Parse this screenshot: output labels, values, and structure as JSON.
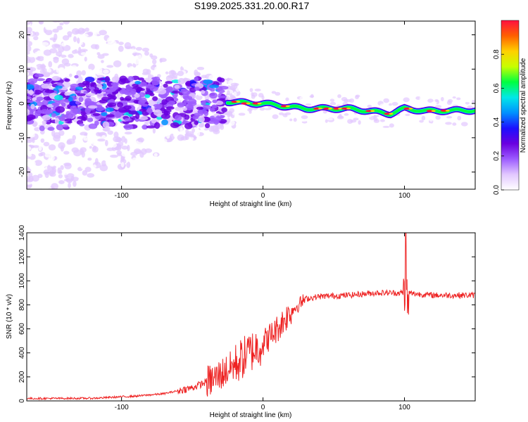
{
  "title": "S199.2025.331.20.00.R17",
  "chart_data": [
    {
      "type": "heatmap",
      "xlabel": "Height of straight line (km)",
      "ylabel": "Frequency (Hz)",
      "xlim": [
        -167,
        150
      ],
      "ylim": [
        -25,
        24
      ],
      "xticks": [
        -100,
        0,
        100
      ],
      "yticks": [
        -20,
        -10,
        0,
        10,
        20
      ],
      "colorbar": {
        "label": "Normalized spectral amplitude",
        "range": [
          0,
          1
        ],
        "ticks": [
          0.0,
          0.2,
          0.4,
          0.6,
          0.8
        ],
        "colors": [
          "#ffffff",
          "#e2c8ff",
          "#9d5cff",
          "#6a00e0",
          "#1c10ff",
          "#0090ff",
          "#00e8e8",
          "#00ff40",
          "#c8ff00",
          "#ffd000",
          "#ff6000",
          "#ff1040"
        ]
      },
      "ridge": [
        {
          "x": -20,
          "y": 0.5
        },
        {
          "x": -10,
          "y": 0
        },
        {
          "x": 0,
          "y": 0
        },
        {
          "x": 15,
          "y": -0.8
        },
        {
          "x": 30,
          "y": -1.5
        },
        {
          "x": 60,
          "y": -1.5
        },
        {
          "x": 75,
          "y": -2.2
        },
        {
          "x": 90,
          "y": -3
        },
        {
          "x": 100,
          "y": -1.5
        },
        {
          "x": 115,
          "y": -2.2
        },
        {
          "x": 150,
          "y": -2
        }
      ]
    },
    {
      "type": "line",
      "xlabel": "Height of straight line (km)",
      "ylabel": "SNR (10 * v/v)",
      "xlim": [
        -167,
        150
      ],
      "ylim": [
        0,
        1400
      ],
      "xticks": [
        -100,
        0,
        100
      ],
      "yticks": [
        0,
        200,
        400,
        600,
        800,
        1000,
        1200,
        1400
      ],
      "series": [
        {
          "name": "SNR",
          "color": "#ee2222",
          "trend": [
            {
              "x": -167,
              "y": 20
            },
            {
              "x": -120,
              "y": 22
            },
            {
              "x": -90,
              "y": 40
            },
            {
              "x": -70,
              "y": 60
            },
            {
              "x": -50,
              "y": 110
            },
            {
              "x": -35,
              "y": 180
            },
            {
              "x": -20,
              "y": 300
            },
            {
              "x": -10,
              "y": 400
            },
            {
              "x": 0,
              "y": 480
            },
            {
              "x": 10,
              "y": 600
            },
            {
              "x": 20,
              "y": 750
            },
            {
              "x": 30,
              "y": 850
            },
            {
              "x": 40,
              "y": 870
            },
            {
              "x": 60,
              "y": 880
            },
            {
              "x": 80,
              "y": 900
            },
            {
              "x": 100,
              "y": 900
            },
            {
              "x": 120,
              "y": 880
            },
            {
              "x": 150,
              "y": 880
            }
          ],
          "spike": {
            "x": 101,
            "y": 1400
          }
        }
      ]
    }
  ]
}
